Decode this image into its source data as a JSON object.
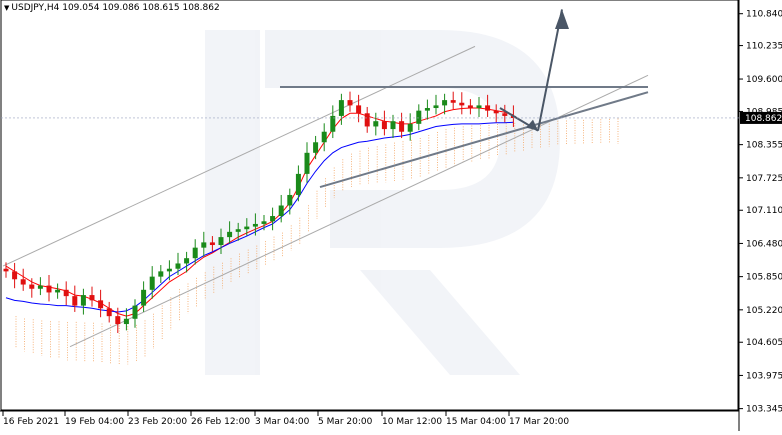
{
  "header": {
    "symbol": "USDJPY,H4",
    "ohlc": "109.054 109.086 108.615 108.862",
    "collapse_icon": "triangle-down-icon"
  },
  "chart_data": {
    "type": "candlestick",
    "symbol": "USDJPY,H4",
    "ylim": [
      103.3,
      111.1
    ],
    "price_ticks": [
      "110.840",
      "110.235",
      "109.600",
      "108.985",
      "108.355",
      "107.725",
      "107.110",
      "106.480",
      "105.850",
      "105.220",
      "104.605",
      "103.975",
      "103.345"
    ],
    "current_price": "108.862",
    "time_ticks": [
      "16 Feb 2021",
      "19 Feb 04:00",
      "23 Feb 20:00",
      "26 Feb 12:00",
      "3 Mar 04:00",
      "5 Mar 20:00",
      "10 Mar 12:00",
      "15 Mar 04:00",
      "17 Mar 20:00"
    ],
    "series": [
      {
        "name": "price",
        "close": [
          105.95,
          105.8,
          105.7,
          105.62,
          105.68,
          105.55,
          105.6,
          105.48,
          105.3,
          105.5,
          105.4,
          105.25,
          105.1,
          104.95,
          105.05,
          105.3,
          105.6,
          105.85,
          105.95,
          106.0,
          106.1,
          106.2,
          106.4,
          106.5,
          106.45,
          106.6,
          106.7,
          106.75,
          106.8,
          106.85,
          106.9,
          107.0,
          107.2,
          107.4,
          107.8,
          108.2,
          108.4,
          108.6,
          108.9,
          109.2,
          109.1,
          108.95,
          108.7,
          108.8,
          108.65,
          108.8,
          108.6,
          108.75,
          109.0,
          109.05,
          109.1,
          109.2,
          109.15,
          109.1,
          109.05,
          109.1,
          109.0,
          108.95,
          108.9,
          108.86
        ]
      },
      {
        "name": "tenkan",
        "values": [
          106.05,
          105.95,
          105.85,
          105.75,
          105.68,
          105.65,
          105.62,
          105.58,
          105.5,
          105.48,
          105.42,
          105.35,
          105.25,
          105.15,
          105.1,
          105.15,
          105.3,
          105.45,
          105.6,
          105.75,
          105.85,
          105.95,
          106.1,
          106.22,
          106.3,
          106.4,
          106.5,
          106.6,
          106.68,
          106.75,
          106.82,
          106.9,
          107.05,
          107.25,
          107.55,
          107.9,
          108.15,
          108.4,
          108.65,
          108.85,
          108.95,
          108.95,
          108.9,
          108.85,
          108.8,
          108.78,
          108.75,
          108.75,
          108.8,
          108.85,
          108.9,
          108.98,
          109.02,
          109.04,
          109.05,
          109.05,
          109.03,
          109.0,
          108.97,
          108.92
        ]
      },
      {
        "name": "kijun",
        "values": [
          105.45,
          105.4,
          105.38,
          105.35,
          105.33,
          105.32,
          105.3,
          105.3,
          105.28,
          105.27,
          105.25,
          105.22,
          105.2,
          105.18,
          105.2,
          105.28,
          105.4,
          105.55,
          105.7,
          105.85,
          105.95,
          106.05,
          106.15,
          106.25,
          106.32,
          106.4,
          106.48,
          106.55,
          106.62,
          106.7,
          106.78,
          106.85,
          106.98,
          107.12,
          107.35,
          107.62,
          107.85,
          108.05,
          108.2,
          108.3,
          108.35,
          108.4,
          108.42,
          108.45,
          108.48,
          108.5,
          108.52,
          108.55,
          108.6,
          108.65,
          108.7,
          108.72,
          108.74,
          108.75,
          108.75,
          108.75,
          108.76,
          108.77,
          108.77,
          108.78
        ]
      }
    ]
  }
}
